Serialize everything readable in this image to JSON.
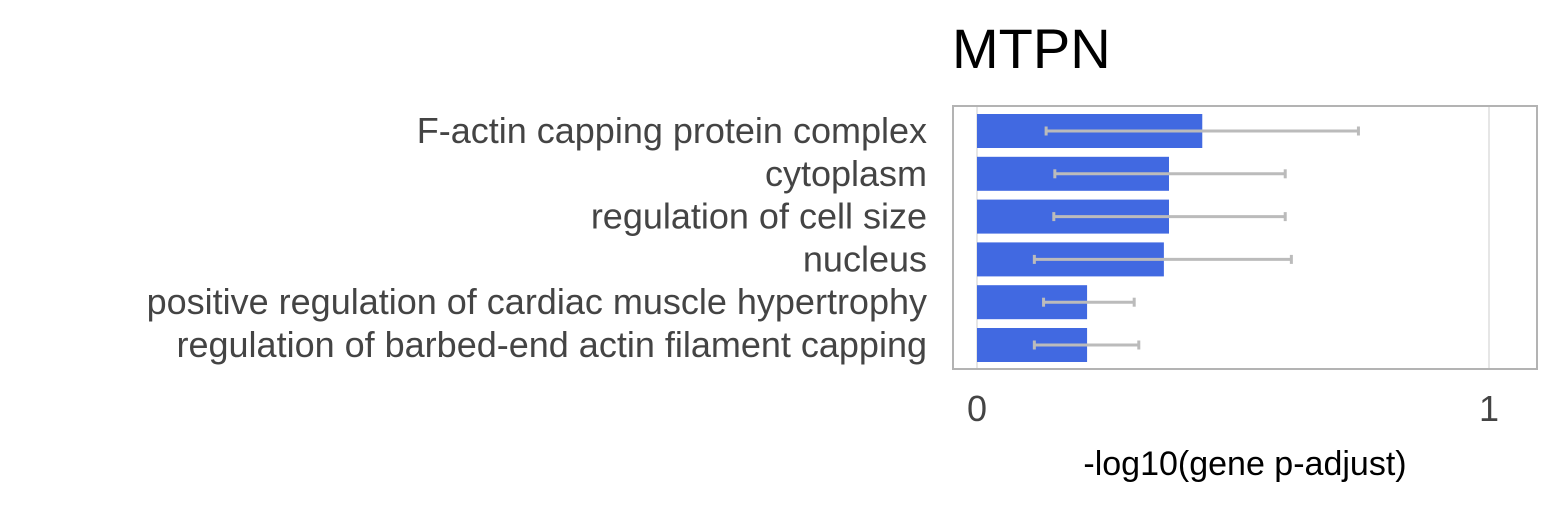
{
  "chart_data": {
    "type": "bar",
    "orientation": "horizontal",
    "title": "MTPN",
    "xlabel": "-log10(gene p-adjust)",
    "ylabel": "",
    "xlim": [
      0,
      1.1
    ],
    "x_ticks": [
      0,
      1
    ],
    "grid": true,
    "categories": [
      "F-actin capping protein complex",
      "cytoplasm",
      "regulation of cell size",
      "nucleus",
      "positive regulation of cardiac muscle hypertrophy",
      "regulation of barbed-end actin filament capping"
    ],
    "values": [
      0.44,
      0.375,
      0.375,
      0.365,
      0.215,
      0.215
    ],
    "error_low": [
      0.135,
      0.152,
      0.15,
      0.112,
      0.13,
      0.112
    ],
    "error_high": [
      0.745,
      0.602,
      0.602,
      0.614,
      0.307,
      0.316
    ],
    "bar_color": "#4169E1",
    "error_color": "#BBBBBB"
  }
}
